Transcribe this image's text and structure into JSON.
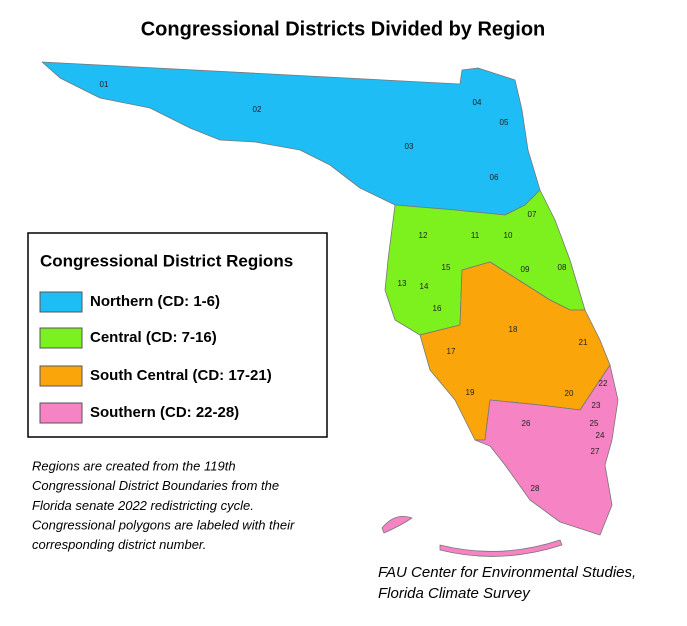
{
  "title": "Congressional Districts Divided by Region",
  "legend": {
    "title": "Congressional District Regions",
    "items": [
      {
        "label": "Northern (CD: 1-6)",
        "color": "#1ebdf5"
      },
      {
        "label": "Central (CD: 7-16)",
        "color": "#7cf11e"
      },
      {
        "label": "South Central (CD: 17-21)",
        "color": "#faa60a"
      },
      {
        "label": "Southern (CD: 22-28)",
        "color": "#f683c3"
      }
    ]
  },
  "districts": [
    "01",
    "02",
    "03",
    "04",
    "05",
    "06",
    "07",
    "08",
    "09",
    "10",
    "11",
    "12",
    "13",
    "14",
    "15",
    "16",
    "17",
    "18",
    "19",
    "20",
    "21",
    "22",
    "23",
    "24",
    "25",
    "26",
    "27",
    "28"
  ],
  "note": [
    "Regions are created from the 119th",
    "Congressional District Boundaries from the",
    "Florida senate 2022 redistricting cycle.",
    "Congressional polygons are labeled with their",
    "corresponding district number."
  ],
  "credit": [
    "FAU Center for Environmental Studies,",
    "Florida Climate Survey"
  ]
}
